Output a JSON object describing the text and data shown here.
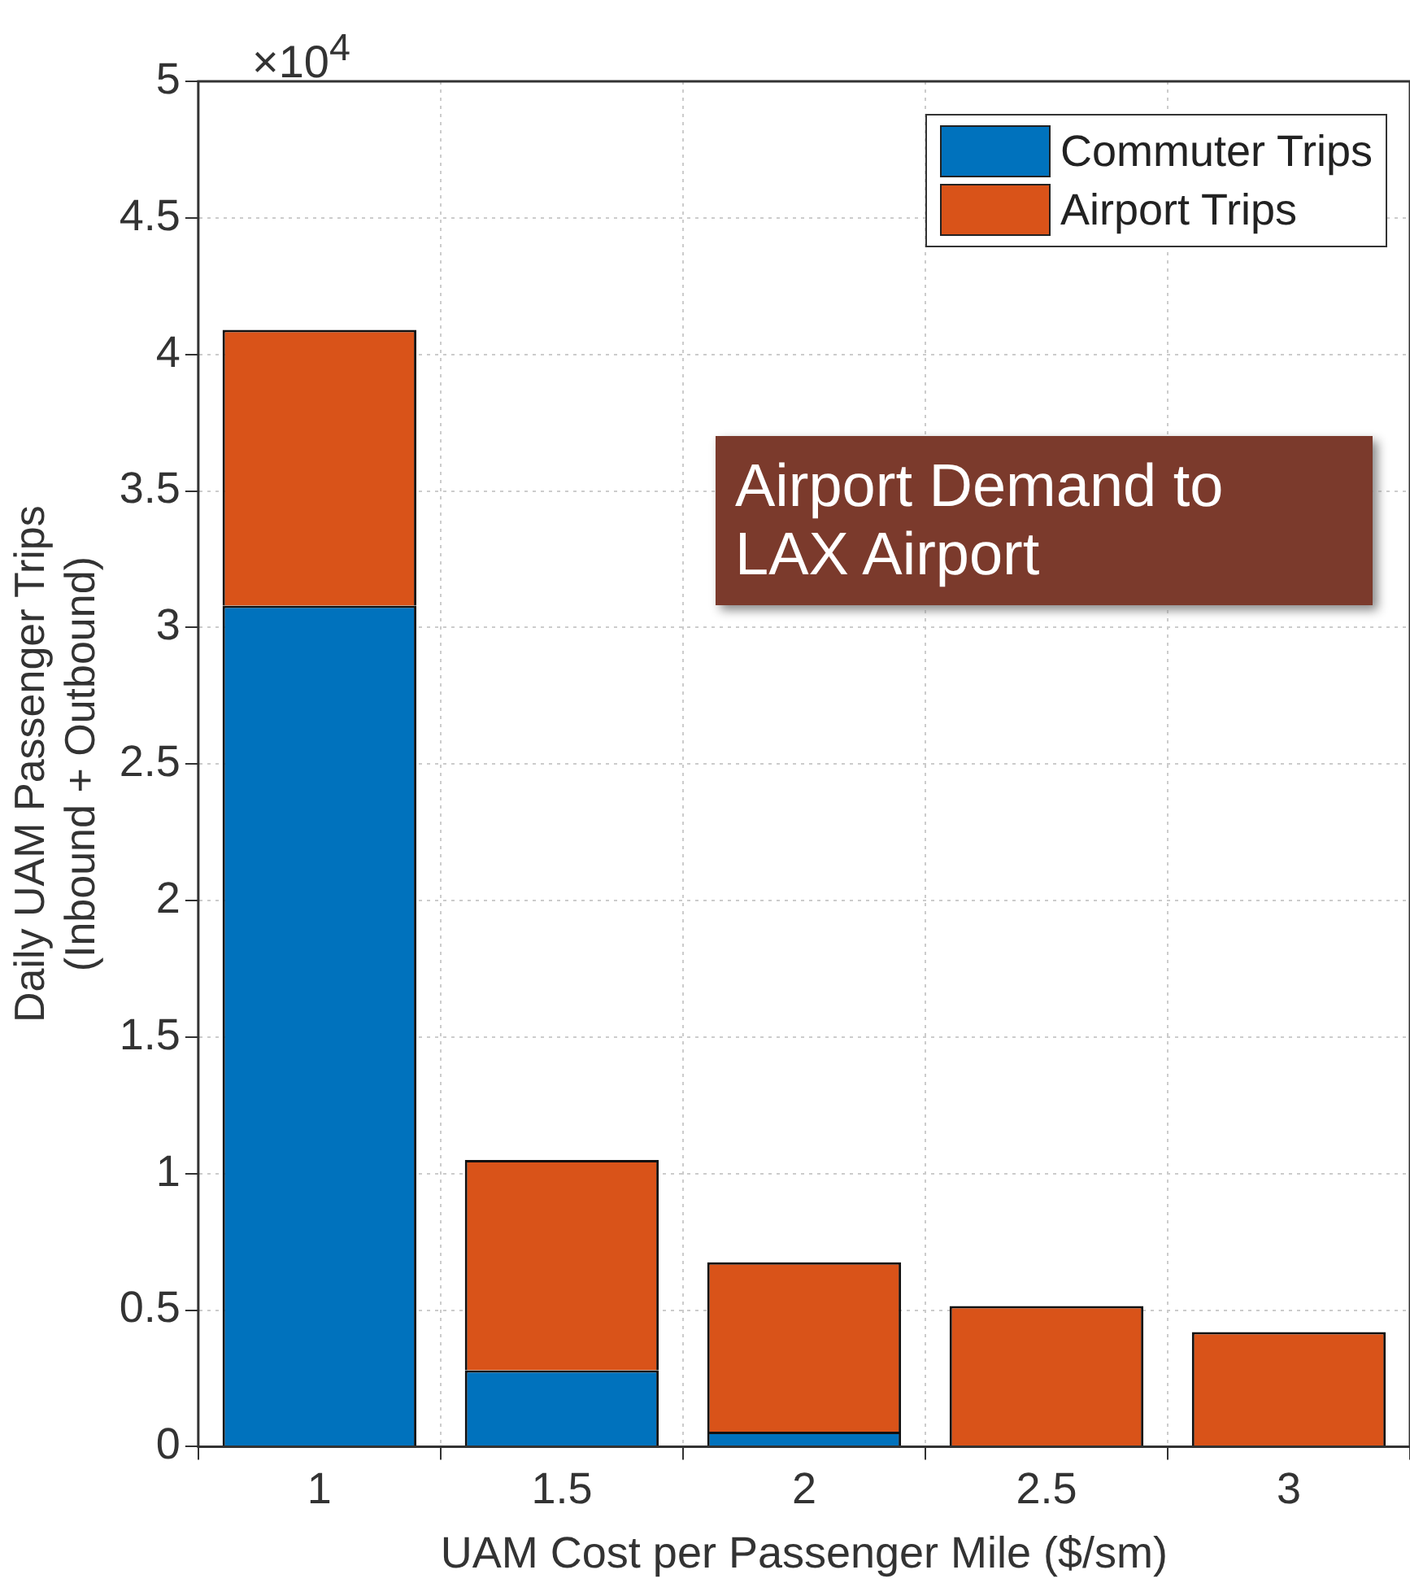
{
  "chart_data": {
    "type": "bar",
    "stacked": true,
    "xlabel": "UAM Cost per Passenger Mile ($/sm)",
    "ylabel": "Daily UAM Passenger Trips\n(Inbound + Outbound)",
    "categories": [
      "1",
      "1.5",
      "2",
      "2.5",
      "3"
    ],
    "series": [
      {
        "name": "Commuter Trips",
        "color": "#0072bd",
        "values": [
          3.08,
          0.28,
          0.055,
          null,
          0
        ]
      },
      {
        "name": "Airport Trips",
        "color": "#d95319",
        "values": [
          1.01,
          0.77,
          0.62,
          0.515,
          0.42
        ]
      }
    ],
    "ylim": [
      0,
      5
    ],
    "yticks": [
      0,
      0.5,
      1,
      1.5,
      2,
      2.5,
      3,
      3.5,
      4,
      4.5,
      5
    ],
    "grid": true,
    "legend": "top right",
    "annotations": [
      "×10$^{4}$",
      "Airport Demand to LAX Airport"
    ]
  }
}
